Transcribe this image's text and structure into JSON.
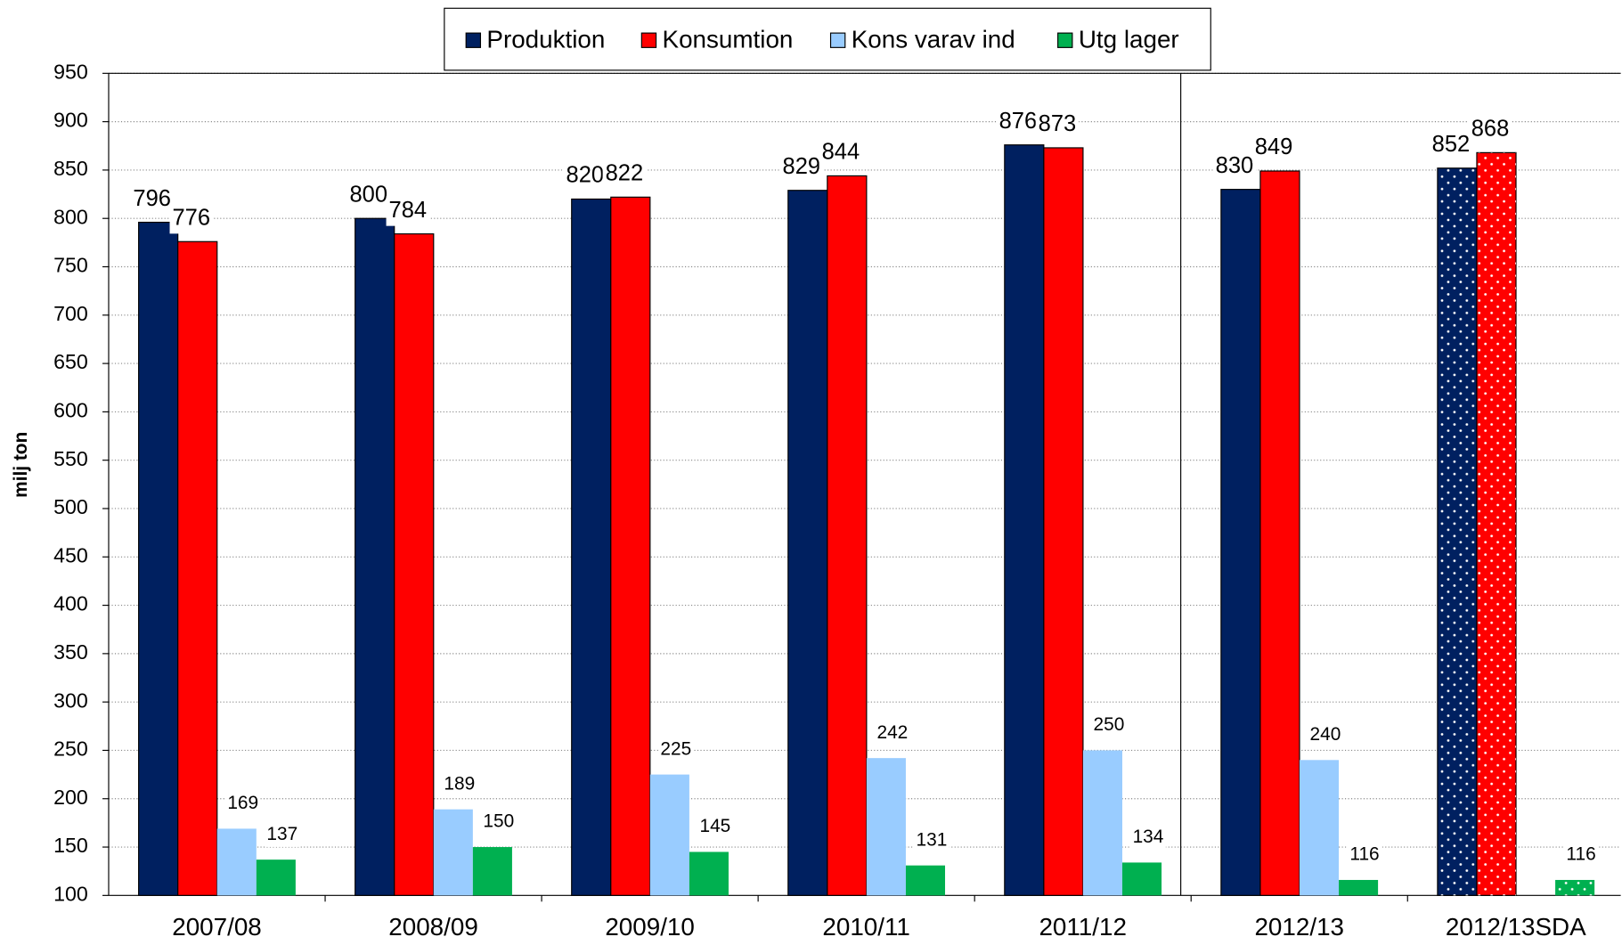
{
  "chart_data": {
    "type": "bar",
    "y_label": "milj ton",
    "categories": [
      "2007/08",
      "2008/09",
      "2009/10",
      "2010/11",
      "2011/12",
      "2012/13",
      "2012/13SDA"
    ],
    "series": [
      {
        "name": "Produktion",
        "color": "#002060",
        "values": [
          796,
          800,
          820,
          829,
          876,
          830,
          852
        ]
      },
      {
        "name": "Konsumtion",
        "color": "#ff0000",
        "values": [
          776,
          784,
          822,
          844,
          873,
          849,
          868
        ]
      },
      {
        "name": "Kons varav ind",
        "color": "#99ccff",
        "values": [
          169,
          189,
          225,
          242,
          250,
          240,
          null
        ]
      },
      {
        "name": "Utg lager",
        "color": "#00b050",
        "values": [
          137,
          150,
          145,
          131,
          134,
          116,
          116
        ]
      }
    ],
    "ylim": [
      100,
      950
    ],
    "yticks": [
      100,
      150,
      200,
      250,
      300,
      350,
      400,
      450,
      500,
      550,
      600,
      650,
      700,
      750,
      800,
      850,
      900,
      950
    ],
    "grid": true,
    "legend": "top",
    "dotted_categories": [
      6
    ]
  }
}
